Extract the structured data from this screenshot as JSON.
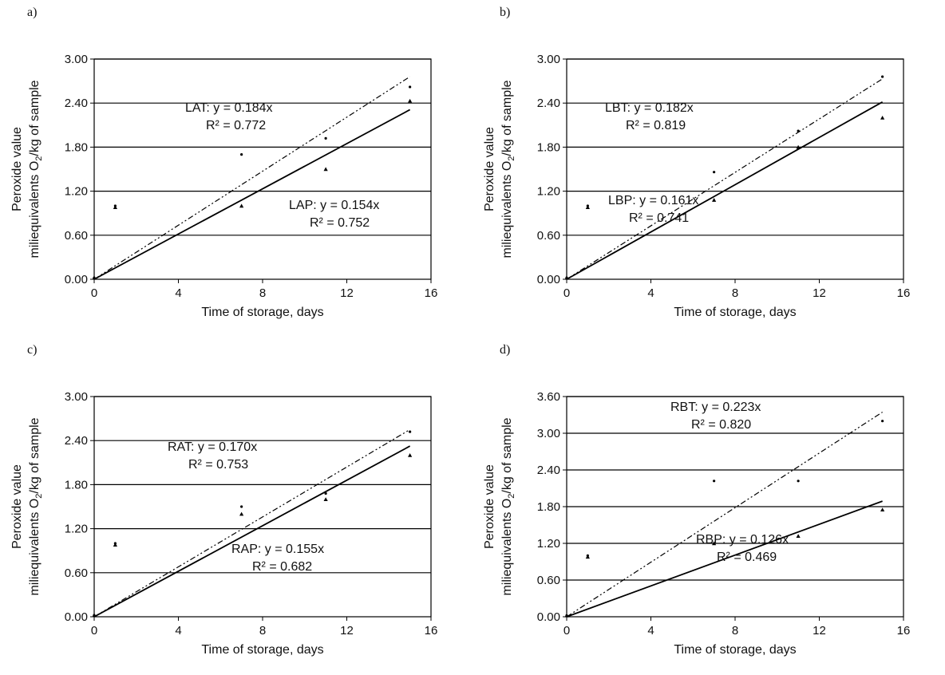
{
  "chart_data": [
    {
      "type": "scatter",
      "panel_label": "a)",
      "xlabel": "Time of storage, days",
      "ylabel_line1": "Peroxide value",
      "ylabel_line2": "miliequivalents O",
      "ylabel_sub": "2",
      "ylabel_line2_end": "/kg of sample",
      "xlim": [
        0,
        16
      ],
      "ylim": [
        0,
        3.0
      ],
      "xticks": [
        "0",
        "4",
        "8",
        "12",
        "16"
      ],
      "yticks": [
        "0.00",
        "0.60",
        "1.20",
        "1.80",
        "2.40",
        "3.00"
      ],
      "series": [
        {
          "style": "dash-dot",
          "points": [
            {
              "x": 0,
              "y": 0.02
            },
            {
              "x": 1,
              "y": 1.0
            },
            {
              "x": 7,
              "y": 1.7
            },
            {
              "x": 11,
              "y": 1.92
            },
            {
              "x": 15,
              "y": 2.62
            }
          ],
          "fit": {
            "slope": 0.184,
            "x_max": 15
          },
          "label": {
            "name": "LAT:",
            "equation": "y = 0.184x",
            "r2": "R² = 0.772"
          }
        },
        {
          "style": "solid",
          "points": [
            {
              "x": 0,
              "y": 0.02
            },
            {
              "x": 1,
              "y": 0.98
            },
            {
              "x": 7,
              "y": 1.0
            },
            {
              "x": 11,
              "y": 1.5
            },
            {
              "x": 15,
              "y": 2.43
            }
          ],
          "fit": {
            "slope": 0.154,
            "x_max": 15
          },
          "label": {
            "name": "LAP:",
            "equation": "y = 0.154x",
            "r2": "R² = 0.752"
          }
        }
      ]
    },
    {
      "type": "scatter",
      "panel_label": "b)",
      "xlabel": "Time of storage, days",
      "ylabel_line1": "Peroxide value",
      "ylabel_line2": "miliequivalents O",
      "ylabel_sub": "2",
      "ylabel_line2_end": "/kg of sample",
      "xlim": [
        0,
        16
      ],
      "ylim": [
        0,
        3.0
      ],
      "xticks": [
        "0",
        "4",
        "8",
        "12",
        "16"
      ],
      "yticks": [
        "0.00",
        "0.60",
        "1.20",
        "1.80",
        "2.40",
        "3.00"
      ],
      "series": [
        {
          "style": "dash-dot",
          "points": [
            {
              "x": 0,
              "y": 0.02
            },
            {
              "x": 1,
              "y": 1.0
            },
            {
              "x": 7,
              "y": 1.46
            },
            {
              "x": 11,
              "y": 2.02
            },
            {
              "x": 15,
              "y": 2.76
            }
          ],
          "fit": {
            "slope": 0.182,
            "x_max": 15
          },
          "label": {
            "name": "LBT:",
            "equation": "y = 0.182x",
            "r2": "R² = 0.819"
          }
        },
        {
          "style": "solid",
          "points": [
            {
              "x": 0,
              "y": 0.02
            },
            {
              "x": 1,
              "y": 0.98
            },
            {
              "x": 7,
              "y": 1.08
            },
            {
              "x": 11,
              "y": 1.8
            },
            {
              "x": 15,
              "y": 2.2
            }
          ],
          "fit": {
            "slope": 0.161,
            "x_max": 15
          },
          "label": {
            "name": "LBP:",
            "equation": "y = 0.161x",
            "r2": "R² = 0.741"
          }
        }
      ]
    },
    {
      "type": "scatter",
      "panel_label": "c)",
      "xlabel": "Time of storage, days",
      "ylabel_line1": "Peroxide value",
      "ylabel_line2": "miliequivalents O",
      "ylabel_sub": "2",
      "ylabel_line2_end": "/kg of sample",
      "xlim": [
        0,
        16
      ],
      "ylim": [
        0,
        3.0
      ],
      "xticks": [
        "0",
        "4",
        "8",
        "12",
        "16"
      ],
      "yticks": [
        "0.00",
        "0.60",
        "1.20",
        "1.80",
        "2.40",
        "3.00"
      ],
      "series": [
        {
          "style": "dash-dot",
          "points": [
            {
              "x": 0,
              "y": 0.02
            },
            {
              "x": 1,
              "y": 1.0
            },
            {
              "x": 7,
              "y": 1.5
            },
            {
              "x": 11,
              "y": 1.68
            },
            {
              "x": 15,
              "y": 2.52
            }
          ],
          "fit": {
            "slope": 0.17,
            "x_max": 15
          },
          "label": {
            "name": "RAT:",
            "equation": "y = 0.170x",
            "r2": "R² = 0.753"
          }
        },
        {
          "style": "solid",
          "points": [
            {
              "x": 0,
              "y": 0.02
            },
            {
              "x": 1,
              "y": 0.98
            },
            {
              "x": 7,
              "y": 1.4
            },
            {
              "x": 11,
              "y": 1.6
            },
            {
              "x": 15,
              "y": 2.2
            }
          ],
          "fit": {
            "slope": 0.155,
            "x_max": 15
          },
          "label": {
            "name": "RAP:",
            "equation": "y = 0.155x",
            "r2": "R² = 0.682"
          }
        }
      ]
    },
    {
      "type": "scatter",
      "panel_label": "d)",
      "xlabel": "Time of storage, days",
      "ylabel_line1": "Peroxide value",
      "ylabel_line2": "miliequivalents O",
      "ylabel_sub": "2",
      "ylabel_line2_end": "/kg of sample",
      "xlim": [
        0,
        16
      ],
      "ylim": [
        0,
        3.6
      ],
      "xticks": [
        "0",
        "4",
        "8",
        "12",
        "16"
      ],
      "yticks": [
        "0.00",
        "0.60",
        "1.20",
        "1.80",
        "2.40",
        "3.00",
        "3.60"
      ],
      "series": [
        {
          "style": "dash-dot",
          "points": [
            {
              "x": 0,
              "y": 0.02
            },
            {
              "x": 1,
              "y": 1.0
            },
            {
              "x": 7,
              "y": 2.22
            },
            {
              "x": 11,
              "y": 2.22
            },
            {
              "x": 15,
              "y": 3.2
            }
          ],
          "fit": {
            "slope": 0.223,
            "x_max": 15
          },
          "label": {
            "name": "RBT:",
            "equation": "y = 0.223x",
            "r2": "R² = 0.820"
          }
        },
        {
          "style": "solid",
          "points": [
            {
              "x": 0,
              "y": 0.02
            },
            {
              "x": 1,
              "y": 0.98
            },
            {
              "x": 7,
              "y": 1.2
            },
            {
              "x": 11,
              "y": 1.32
            },
            {
              "x": 15,
              "y": 1.75
            }
          ],
          "fit": {
            "slope": 0.126,
            "x_max": 15
          },
          "label": {
            "name": "RBP:",
            "equation": "y = 0.126x",
            "r2": "R² = 0.469"
          }
        }
      ]
    }
  ]
}
